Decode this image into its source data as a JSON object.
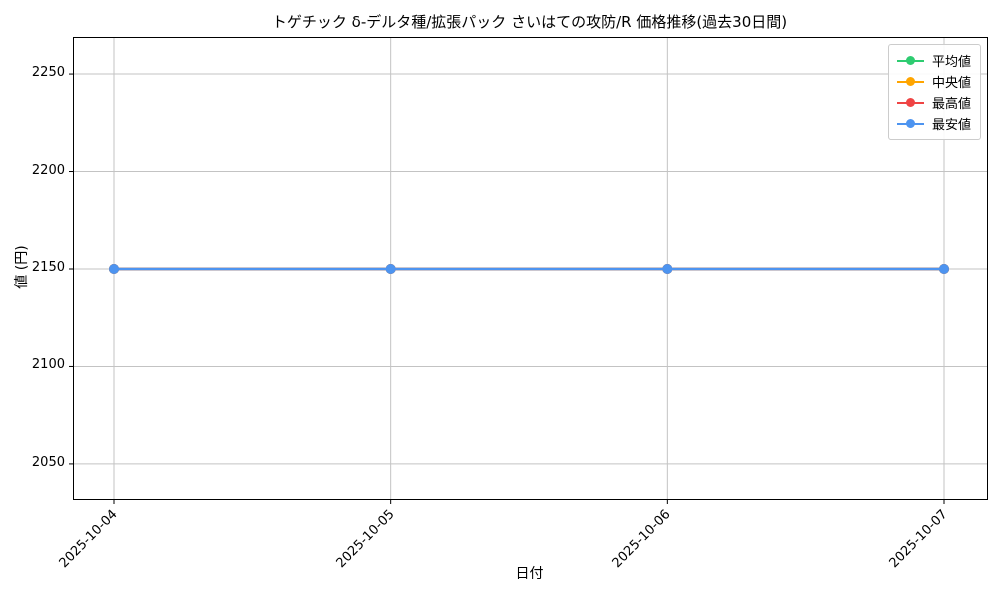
{
  "chart_data": {
    "type": "line",
    "title": "トゲチック δ-デルタ種/拡張パック さいはての攻防/R 価格推移(過去30日間)",
    "xlabel": "日付",
    "ylabel": "値 (円)",
    "categories": [
      "2025-10-04",
      "2025-10-05",
      "2025-10-06",
      "2025-10-07"
    ],
    "series": [
      {
        "name": "平均値",
        "color": "#2ecc71",
        "values": [
          2150,
          2150,
          2150,
          2150
        ]
      },
      {
        "name": "中央値",
        "color": "#ffa500",
        "values": [
          2150,
          2150,
          2150,
          2150
        ]
      },
      {
        "name": "最高値",
        "color": "#ef4444",
        "values": [
          2150,
          2150,
          2150,
          2150
        ]
      },
      {
        "name": "最安値",
        "color": "#4d94f0",
        "values": [
          2150,
          2150,
          2150,
          2150
        ]
      }
    ],
    "yticks": [
      2050,
      2100,
      2150,
      2200,
      2250
    ],
    "ylim": [
      2032,
      2268.5
    ],
    "grid": true,
    "grid_color": "#c3c3c3",
    "legend_position": "upper right"
  }
}
